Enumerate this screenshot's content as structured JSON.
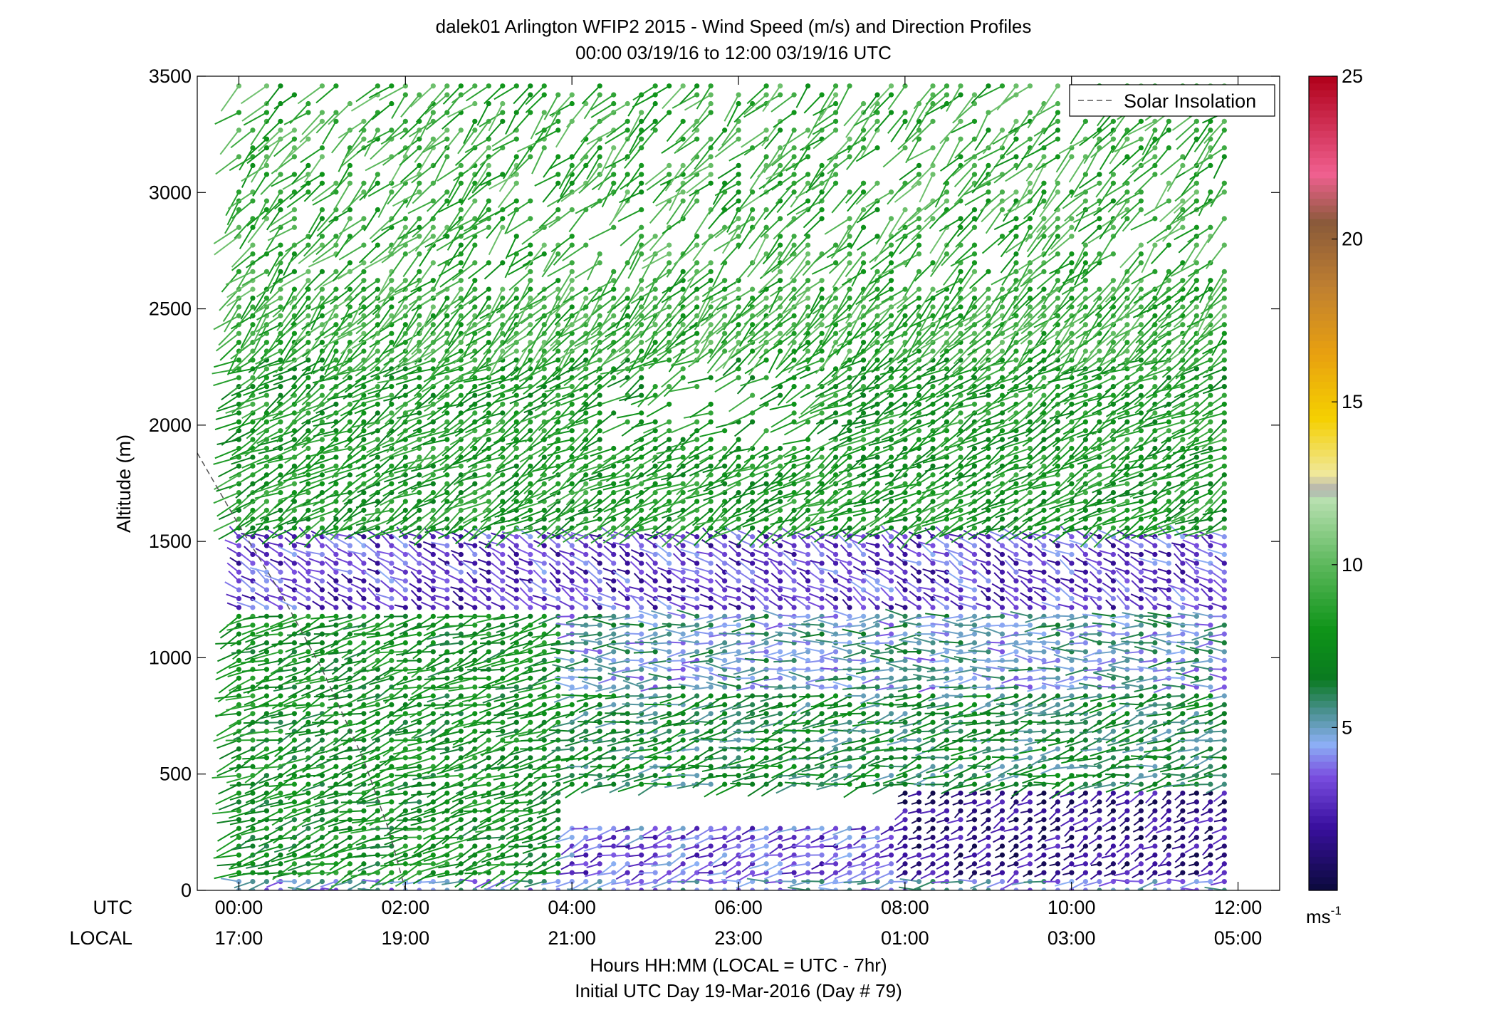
{
  "chart_data": {
    "type": "wind-barb-profile",
    "title": "dalek01 Arlington WFIP2 2015 - Wind Speed (m/s) and Direction Profiles",
    "subtitle": "00:00 03/19/16 to 12:00 03/19/16  UTC",
    "ylabel": "Altitude (m)",
    "xlabel": "Hours HH:MM  (LOCAL = UTC - 7hr)",
    "footer": "Initial UTC Day 19-Mar-2016 (Day # 79)",
    "x_row_label_utc": "UTC",
    "x_row_label_local": "LOCAL",
    "x_range_hours": [
      -0.5,
      12.5
    ],
    "ylim": [
      0,
      3500
    ],
    "yticks": [
      0,
      500,
      1000,
      1500,
      2000,
      2500,
      3000,
      3500
    ],
    "ytick_labels": [
      "0",
      "500",
      "1000",
      "1500",
      "2000",
      "2500",
      "3000",
      "3500"
    ],
    "xticks_hours": [
      0,
      2,
      4,
      6,
      8,
      10,
      12
    ],
    "xtick_labels_utc": [
      "00:00",
      "02:00",
      "04:00",
      "06:00",
      "08:00",
      "10:00",
      "12:00"
    ],
    "xtick_labels_local": [
      "17:00",
      "19:00",
      "21:00",
      "23:00",
      "01:00",
      "03:00",
      "05:00"
    ],
    "legend": {
      "entries": [
        "Solar Insolation"
      ],
      "placement": "top-right"
    },
    "colorbar": {
      "range": [
        0,
        25
      ],
      "ticks": [
        5,
        10,
        15,
        20,
        25
      ],
      "tick_labels": [
        "5",
        "10",
        "15",
        "20",
        "25"
      ],
      "unit": "ms",
      "unit_superscript": "-1",
      "stops": [
        {
          "v": 0,
          "c": "#0a0a3c"
        },
        {
          "v": 2,
          "c": "#3a10a0"
        },
        {
          "v": 3.5,
          "c": "#7a4ee0"
        },
        {
          "v": 4.5,
          "c": "#8cb0f5"
        },
        {
          "v": 5.5,
          "c": "#4a9090"
        },
        {
          "v": 6.5,
          "c": "#0a7a20"
        },
        {
          "v": 8,
          "c": "#0e9418"
        },
        {
          "v": 10,
          "c": "#5cb85c"
        },
        {
          "v": 12,
          "c": "#b8e0b0"
        },
        {
          "v": 12.3,
          "c": "#b0b0b0"
        },
        {
          "v": 12.8,
          "c": "#f0e89a"
        },
        {
          "v": 14.5,
          "c": "#f5d000"
        },
        {
          "v": 16.5,
          "c": "#e8a010"
        },
        {
          "v": 18.5,
          "c": "#c08030"
        },
        {
          "v": 20.5,
          "c": "#8a5a3a"
        },
        {
          "v": 22,
          "c": "#f06090"
        },
        {
          "v": 25,
          "c": "#b0001a"
        }
      ]
    },
    "solar_insolation_line": [
      {
        "t": -0.5,
        "alt": 1880
      },
      {
        "t": 0,
        "alt": 1570
      },
      {
        "t": 0.5,
        "alt": 1280
      },
      {
        "t": 1.0,
        "alt": 950
      },
      {
        "t": 1.5,
        "alt": 560
      },
      {
        "t": 1.8,
        "alt": 260
      },
      {
        "t": 2.0,
        "alt": 0
      }
    ],
    "profiles": {
      "time_step_hours": 0.1667,
      "times_from": 0.0,
      "times_to": 12.0,
      "altitudes": [
        0,
        38,
        76,
        114,
        152,
        190,
        228,
        266,
        304,
        342,
        380,
        418,
        456,
        494,
        532,
        570,
        608,
        646,
        684,
        722,
        760,
        798,
        836,
        874,
        912,
        950,
        988,
        1026,
        1064,
        1102,
        1140,
        1178,
        1216,
        1254,
        1292,
        1330,
        1368,
        1406,
        1444,
        1482,
        1520,
        1558,
        1596,
        1634,
        1672,
        1710,
        1748,
        1786,
        1824,
        1862,
        1900,
        1938,
        1976,
        2014,
        2052,
        2090,
        2128,
        2166,
        2204,
        2242,
        2280,
        2318,
        2356,
        2394,
        2432,
        2470,
        2508,
        2546,
        2584,
        2622,
        2660,
        2698,
        2736,
        2774,
        2812,
        2850,
        2888,
        2926,
        2964,
        3002,
        3040,
        3078,
        3116,
        3154,
        3192,
        3230,
        3268,
        3306,
        3344,
        3382,
        3420,
        3458
      ],
      "speed_summary": [
        {
          "t_from": 0,
          "t_to": 12,
          "alt_from": 0,
          "alt_to": 60,
          "speed": 4.5,
          "dir_deg": 260
        },
        {
          "t_from": 0,
          "t_to": 4,
          "alt_from": 60,
          "alt_to": 1200,
          "speed": 7.5,
          "dir_deg": 250
        },
        {
          "t_from": 4,
          "t_to": 8,
          "alt_from": 60,
          "alt_to": 300,
          "speed": 3.5,
          "dir_deg": 250
        },
        {
          "t_from": 8,
          "t_to": 12,
          "alt_from": 60,
          "alt_to": 450,
          "speed": 1.5,
          "dir_deg": 240
        },
        {
          "t_from": 4,
          "t_to": 12,
          "alt_from": 450,
          "alt_to": 850,
          "speed": 6.5,
          "dir_deg": 255
        },
        {
          "t_from": 4,
          "t_to": 12,
          "alt_from": 850,
          "alt_to": 1200,
          "speed": 5.0,
          "dir_deg": 270
        },
        {
          "t_from": 0,
          "t_to": 12,
          "alt_from": 1200,
          "alt_to": 1550,
          "speed": 3.0,
          "dir_deg": 300
        },
        {
          "t_from": 0,
          "t_to": 12,
          "alt_from": 1550,
          "alt_to": 2300,
          "speed": 8.0,
          "dir_deg": 240
        },
        {
          "t_from": 0,
          "t_to": 12,
          "alt_from": 2300,
          "alt_to": 3500,
          "speed": 9.0,
          "dir_deg": 225
        }
      ]
    }
  }
}
